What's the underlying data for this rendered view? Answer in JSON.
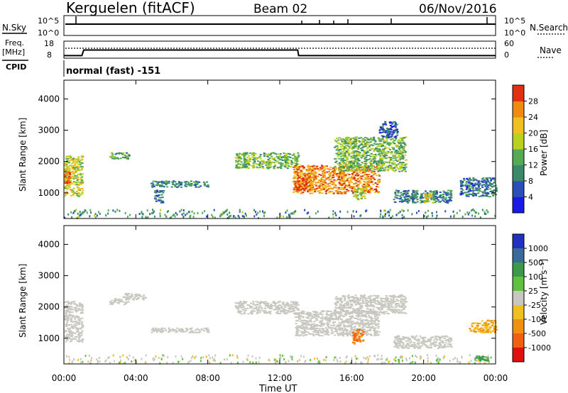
{
  "header": {
    "station": "Kerguelen (fitACF)",
    "beam": "Beam 02",
    "date": "06/Nov/2016"
  },
  "top_panels": {
    "nsky_label": "N.Sky",
    "nsky_ticks": [
      "10^5",
      "10^0"
    ],
    "nsearch_label": "N.Search",
    "nsearch_ticks": [
      "10^5",
      "10^0"
    ],
    "freq_label": "Freq.",
    "freq_unit": "[MHz]",
    "freq_ticks": [
      "18",
      "8"
    ],
    "nave_label": "Nave",
    "nave_ticks": [
      "60",
      "0"
    ],
    "cpid_label": "CPID",
    "cpid_value": "normal (fast) -151",
    "freq_series": [
      {
        "t": 0.0,
        "mhz": 9.5
      },
      {
        "t": 1.0,
        "mhz": 9.5
      },
      {
        "t": 1.1,
        "mhz": 12.8
      },
      {
        "t": 13.0,
        "mhz": 12.8
      },
      {
        "t": 13.05,
        "mhz": 9.5
      },
      {
        "t": 24.0,
        "mhz": 9.5
      }
    ]
  },
  "power_colorbar": {
    "label": "Power [dB]",
    "ticks": [
      "4",
      "8",
      "12",
      "16",
      "20",
      "24",
      "28"
    ],
    "colors": [
      "#1a1ae6",
      "#2a4fb8",
      "#3a8a6a",
      "#55aa55",
      "#bcd020",
      "#f0c020",
      "#f08a10",
      "#e03010"
    ]
  },
  "velocity_colorbar": {
    "label": "Velocity [m s⁻¹]",
    "ticks": [
      "1000",
      "500",
      "100",
      "25",
      "-25",
      "-100",
      "-500",
      "-1000"
    ],
    "colors": [
      "#2030c0",
      "#3a6a9a",
      "#3a9a4a",
      "#60c040",
      "#c8c8c0",
      "#f0c020",
      "#f09010",
      "#f06010",
      "#e01010"
    ]
  },
  "x_axis": {
    "title": "Time UT",
    "ticks": [
      "00:00",
      "04:00",
      "08:00",
      "12:00",
      "16:00",
      "20:00",
      "00:00"
    ]
  },
  "y_axis": {
    "title": "Slant Range [km]",
    "ticks": [
      "4000",
      "3000",
      "2000",
      "1000"
    ]
  },
  "chart_data": [
    {
      "type": "heatmap",
      "quantity": "Power",
      "unit": "dB",
      "xlabel": "Time UT",
      "ylabel": "Slant Range [km]",
      "xlim_hours": [
        0,
        24
      ],
      "ylim_km": [
        180,
        4600
      ],
      "clim": [
        0,
        30
      ],
      "regions": [
        {
          "t0": 0.0,
          "t1": 1.0,
          "r0": 900,
          "r1": 2200,
          "level": 18
        },
        {
          "t0": 0.0,
          "t1": 0.3,
          "r0": 1300,
          "r1": 1700,
          "level": 26
        },
        {
          "t0": 2.5,
          "t1": 3.6,
          "r0": 2100,
          "r1": 2300,
          "level": 12
        },
        {
          "t0": 4.8,
          "t1": 8.0,
          "r0": 1200,
          "r1": 1400,
          "level": 10
        },
        {
          "t0": 5.0,
          "t1": 5.5,
          "r0": 700,
          "r1": 1100,
          "level": 8
        },
        {
          "t0": 9.5,
          "t1": 13.0,
          "r0": 1800,
          "r1": 2300,
          "level": 14
        },
        {
          "t0": 12.7,
          "t1": 17.5,
          "r0": 1000,
          "r1": 1900,
          "level": 24
        },
        {
          "t0": 12.8,
          "t1": 13.5,
          "r0": 1100,
          "r1": 1500,
          "level": 28
        },
        {
          "t0": 15.0,
          "t1": 19.0,
          "r0": 1700,
          "r1": 2800,
          "level": 14
        },
        {
          "t0": 16.0,
          "t1": 16.7,
          "r0": 800,
          "r1": 1200,
          "level": 16
        },
        {
          "t0": 17.5,
          "t1": 18.5,
          "r0": 2800,
          "r1": 3300,
          "level": 6
        },
        {
          "t0": 18.3,
          "t1": 21.5,
          "r0": 700,
          "r1": 1100,
          "level": 9
        },
        {
          "t0": 20.0,
          "t1": 20.5,
          "r0": 700,
          "r1": 1000,
          "level": 18
        },
        {
          "t0": 22.0,
          "t1": 24.0,
          "r0": 900,
          "r1": 1500,
          "level": 8
        }
      ]
    },
    {
      "type": "heatmap",
      "quantity": "Velocity",
      "unit": "m s-1",
      "xlabel": "Time UT",
      "ylabel": "Slant Range [km]",
      "xlim_hours": [
        0,
        24
      ],
      "ylim_km": [
        180,
        4600
      ],
      "regions": [
        {
          "t0": 0.0,
          "t1": 1.0,
          "r0": 900,
          "r1": 2200,
          "level": 0
        },
        {
          "t0": 2.5,
          "t1": 3.6,
          "r0": 2100,
          "r1": 2300,
          "level": 0
        },
        {
          "t0": 3.2,
          "t1": 4.5,
          "r0": 2250,
          "r1": 2450,
          "level": 0
        },
        {
          "t0": 4.8,
          "t1": 8.0,
          "r0": 1200,
          "r1": 1350,
          "level": 0
        },
        {
          "t0": 9.5,
          "t1": 13.0,
          "r0": 1800,
          "r1": 2200,
          "level": 0
        },
        {
          "t0": 12.8,
          "t1": 17.5,
          "r0": 1100,
          "r1": 1900,
          "level": 0
        },
        {
          "t0": 15.0,
          "t1": 19.0,
          "r0": 1800,
          "r1": 2400,
          "level": 0
        },
        {
          "t0": 16.0,
          "t1": 16.6,
          "r0": 800,
          "r1": 1300,
          "level": -300
        },
        {
          "t0": 18.3,
          "t1": 21.5,
          "r0": 700,
          "r1": 1100,
          "level": 0
        },
        {
          "t0": 22.5,
          "t1": 24.0,
          "r0": 1200,
          "r1": 1600,
          "level": -60
        },
        {
          "t0": 22.8,
          "t1": 23.6,
          "r0": 300,
          "r1": 450,
          "level": 150
        }
      ]
    }
  ]
}
